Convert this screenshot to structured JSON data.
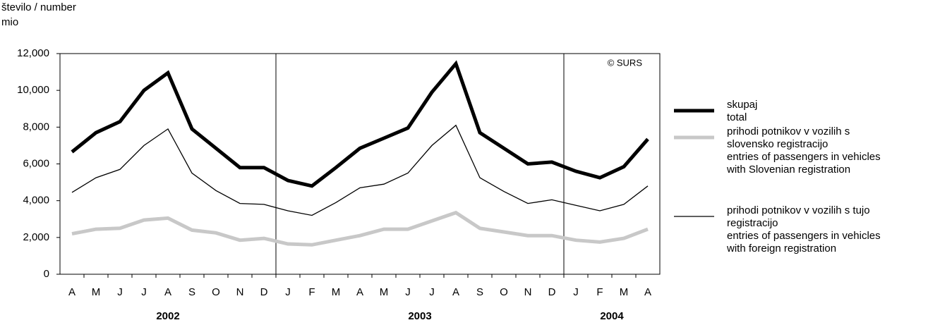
{
  "chart_data": {
    "type": "line",
    "y_label": "število / number",
    "y_unit": "mio",
    "annotation": "© SURS",
    "categories": [
      "A",
      "M",
      "J",
      "J",
      "A",
      "S",
      "O",
      "N",
      "D",
      "J",
      "F",
      "M",
      "A",
      "M",
      "J",
      "J",
      "A",
      "S",
      "O",
      "N",
      "D",
      "J",
      "F",
      "M",
      "A"
    ],
    "years": [
      "2002",
      "2003",
      "2004"
    ],
    "ylim": [
      0,
      12000
    ],
    "yticks": [
      0,
      {
        "value": 2000,
        "label": "2,000"
      },
      {
        "value": 4000,
        "label": "4,000"
      },
      {
        "value": 6000,
        "label": "6,000"
      },
      {
        "value": 8000,
        "label": "8,000"
      },
      {
        "value": 10000,
        "label": "10,000"
      },
      {
        "value": 12000,
        "label": "12,000"
      }
    ],
    "grid": false,
    "series": [
      {
        "name": "skupaj\ntotal",
        "color": "#000000",
        "width": 5,
        "values": [
          6650,
          7700,
          8300,
          10000,
          10950,
          7900,
          6850,
          5800,
          5800,
          5100,
          4800,
          5800,
          6850,
          7400,
          7950,
          9900,
          11450,
          7700,
          6850,
          6000,
          6100,
          5600,
          5250,
          5850,
          7350
        ]
      },
      {
        "name": "prihodi potnikov v vozilih s\nslovensko registracijo\nentries of passengers in vehicles\nwith Slovenian registration",
        "color": "#c8c8c8",
        "width": 5,
        "values": [
          2200,
          2450,
          2500,
          2950,
          3050,
          2400,
          2250,
          1850,
          1950,
          1650,
          1600,
          1850,
          2100,
          2450,
          2450,
          2900,
          3350,
          2500,
          2300,
          2100,
          2100,
          1850,
          1750,
          1950,
          2450
        ]
      },
      {
        "name": "prihodi potnikov v vozilih s tujo\nregistracijo\nentries of passengers in vehicles\nwith foreign  registration",
        "color": "#000000",
        "width": 1.3,
        "values": [
          4450,
          5250,
          5700,
          7000,
          7900,
          5500,
          4550,
          3850,
          3800,
          3450,
          3200,
          3900,
          4700,
          4900,
          5500,
          7000,
          8100,
          5250,
          4500,
          3850,
          4050,
          3750,
          3450,
          3800,
          4800
        ]
      }
    ]
  }
}
